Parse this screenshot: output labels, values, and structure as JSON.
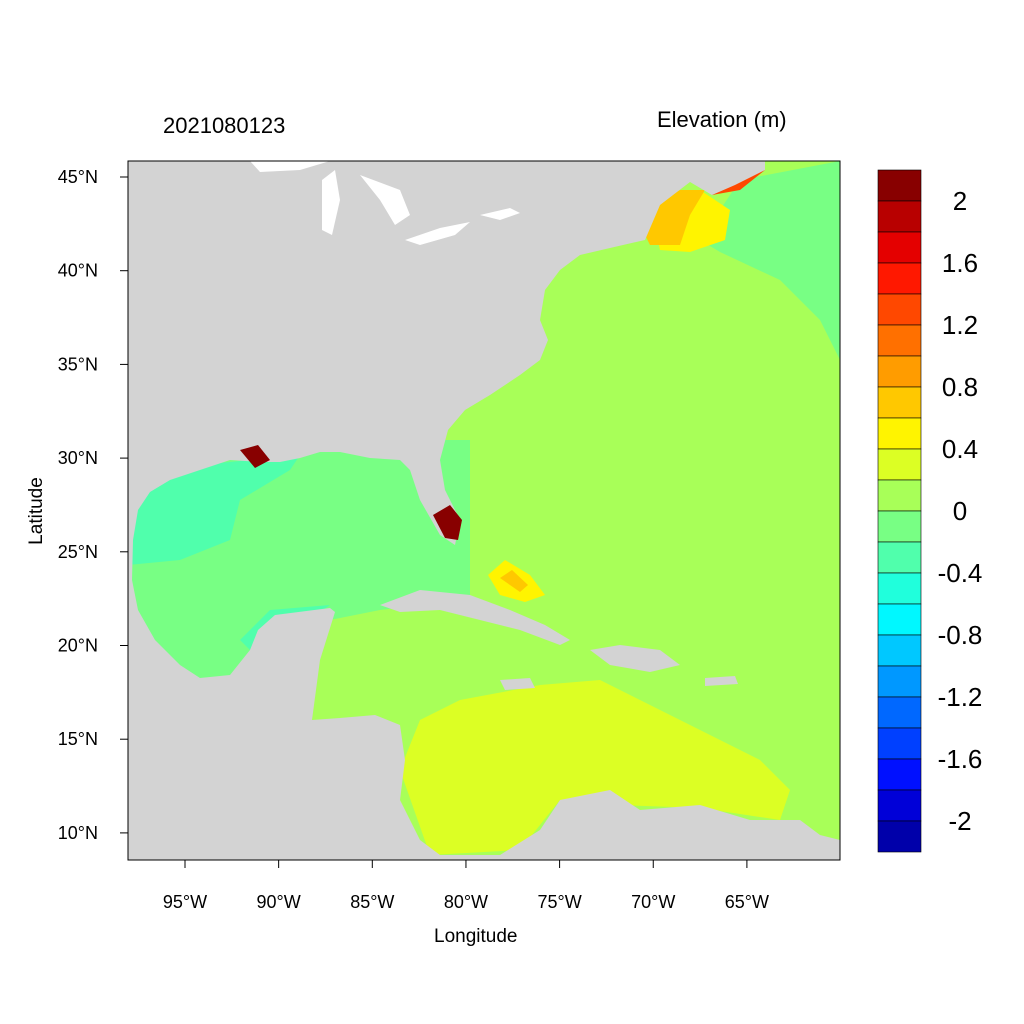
{
  "title_left": "2021080123",
  "title_right": "Elevation (m)",
  "x_axis": {
    "label": "Longitude",
    "ticks": [
      "95°W",
      "90°W",
      "85°W",
      "80°W",
      "75°W",
      "70°W",
      "65°W"
    ],
    "tick_values": [
      -95,
      -90,
      -85,
      -80,
      -75,
      -70,
      -65
    ],
    "range": [
      -98,
      -60
    ]
  },
  "y_axis": {
    "label": "Latitude",
    "ticks": [
      "45°N",
      "40°N",
      "35°N",
      "30°N",
      "25°N",
      "20°N",
      "15°N",
      "10°N"
    ],
    "tick_values": [
      45,
      40,
      35,
      30,
      25,
      20,
      15,
      10
    ],
    "range": [
      8.5,
      45.8
    ]
  },
  "colorbar": {
    "labels": [
      "2",
      "1.6",
      "1.2",
      "0.8",
      "0.4",
      "0",
      "-0.4",
      "-0.8",
      "-1.2",
      "-1.6",
      "-2"
    ],
    "label_values": [
      2,
      1.6,
      1.2,
      0.8,
      0.4,
      0,
      -0.4,
      -0.8,
      -1.2,
      -1.6,
      -2
    ],
    "colors": [
      "#880000",
      "#b80000",
      "#e40000",
      "#ff1800",
      "#ff4800",
      "#ff7000",
      "#ff9c00",
      "#ffc800",
      "#fff400",
      "#dcff24",
      "#a8ff58",
      "#78ff84",
      "#50ffac",
      "#20ffdc",
      "#00f8ff",
      "#00c8ff",
      "#0098ff",
      "#0068ff",
      "#0040ff",
      "#0010ff",
      "#0000d8",
      "#0000aa"
    ]
  },
  "land_color": "#d3d3d3"
}
